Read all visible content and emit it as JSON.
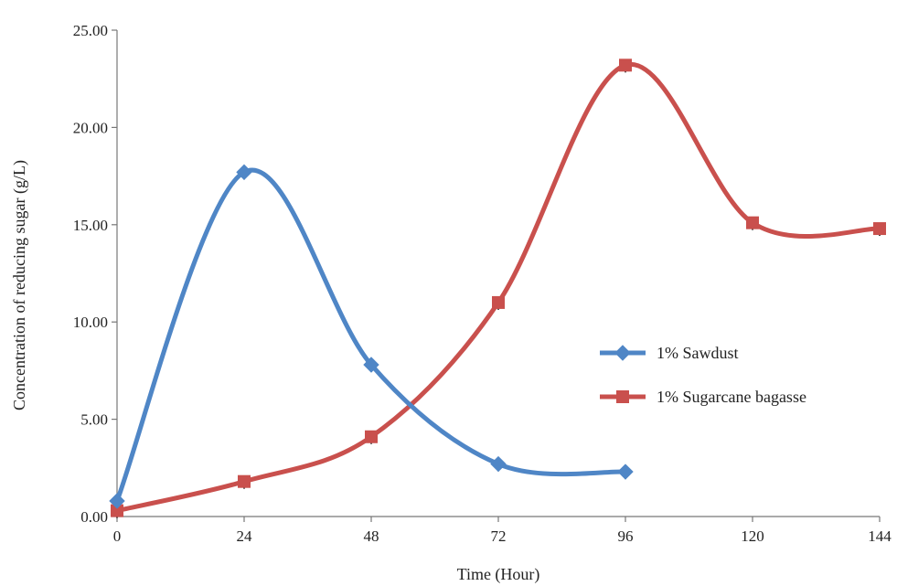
{
  "chart_data": {
    "type": "line",
    "xlabel": "Time (Hour)",
    "ylabel": "Concentration of reducing sugar (g/L)",
    "xlim": [
      0,
      144
    ],
    "ylim": [
      0,
      25
    ],
    "x_ticks": [
      "0",
      "24",
      "48",
      "72",
      "96",
      "120",
      "144"
    ],
    "y_ticks": [
      "0.00",
      "5.00",
      "10.00",
      "15.00",
      "20.00",
      "25.00"
    ],
    "grid": false,
    "legend_position": "right-middle",
    "series": [
      {
        "name": "1% Sawdust",
        "color": "#4f86c6",
        "marker": "diamond",
        "x": [
          0,
          24,
          48,
          72,
          96
        ],
        "y": [
          0.8,
          17.7,
          7.8,
          2.7,
          2.3
        ]
      },
      {
        "name": "1% Sugarcane bagasse",
        "color": "#c9504d",
        "marker": "square",
        "x": [
          0,
          24,
          48,
          72,
          96,
          120,
          144
        ],
        "y": [
          0.3,
          1.8,
          4.1,
          11.0,
          23.2,
          15.1,
          14.8
        ]
      }
    ]
  }
}
